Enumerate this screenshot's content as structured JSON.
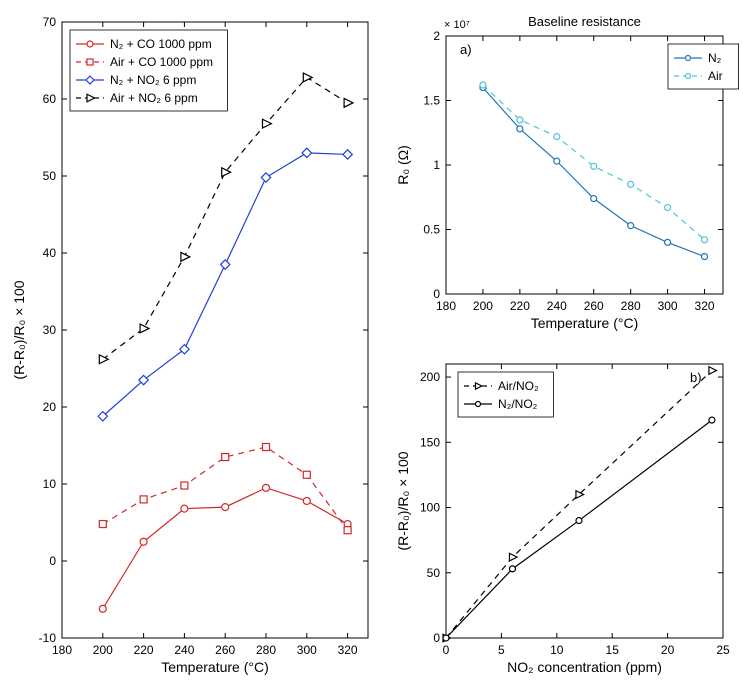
{
  "global": {
    "background_color": "#ffffff",
    "grid_color": "#e6e6e6",
    "axis_color": "#000000",
    "tick_font_size": 12,
    "label_font_size": 14,
    "legend_font_size": 12,
    "title_font_size": 13,
    "font_family": "Arial, Helvetica, sans-serif"
  },
  "left_chart": {
    "type": "line+marker",
    "xlabel": "Temperature (°C)",
    "ylabel": "(R-R₀)/R₀ × 100",
    "xlim": [
      180,
      330
    ],
    "ylim": [
      -10,
      70
    ],
    "xticks": [
      180,
      200,
      220,
      240,
      260,
      280,
      300,
      320
    ],
    "yticks": [
      -10,
      0,
      10,
      20,
      30,
      40,
      50,
      60,
      70
    ],
    "grid": false,
    "x_values": [
      200,
      220,
      240,
      260,
      280,
      300,
      320
    ],
    "series": [
      {
        "label": "N₂ + CO 1000 ppm",
        "color": "#d62728",
        "marker": "circle",
        "linestyle": "solid",
        "y": [
          -6.2,
          2.5,
          6.8,
          7.0,
          9.5,
          7.8,
          4.8
        ]
      },
      {
        "label": "Air + CO 1000 ppm",
        "color": "#d62728",
        "marker": "square",
        "linestyle": "dashed",
        "y": [
          4.8,
          8.0,
          9.8,
          13.5,
          14.8,
          11.2,
          4.0
        ]
      },
      {
        "label": "N₂ + NO₂ 6 ppm",
        "color": "#1f3fd6",
        "marker": "diamond",
        "linestyle": "solid",
        "y": [
          18.8,
          23.5,
          27.5,
          38.5,
          49.8,
          53.0,
          52.8
        ]
      },
      {
        "label": "Air + NO₂ 6 ppm",
        "color": "#000000",
        "marker": "triangle-right",
        "linestyle": "dashed",
        "y": [
          26.2,
          30.2,
          39.5,
          50.5,
          56.8,
          62.8,
          59.5
        ]
      }
    ],
    "legend_position": "upper-left-inside",
    "line_width": 1.2,
    "marker_size": 7
  },
  "right_top_chart": {
    "type": "line+marker",
    "title": "Baseline resistance",
    "panel_label": "a)",
    "xlabel": "Temperature (°C)",
    "ylabel": "R₀ (Ω)",
    "y_exponent_label": "× 10⁷",
    "xlim": [
      180,
      330
    ],
    "ylim": [
      0,
      2
    ],
    "xticks": [
      180,
      200,
      220,
      240,
      260,
      280,
      300,
      320
    ],
    "yticks": [
      0,
      0.5,
      1,
      1.5,
      2
    ],
    "grid": false,
    "x_values": [
      200,
      220,
      240,
      260,
      280,
      300,
      320
    ],
    "series": [
      {
        "label": "N₂",
        "color": "#1f77b4",
        "marker": "circle",
        "linestyle": "solid",
        "y": [
          1.6,
          1.28,
          1.03,
          0.74,
          0.53,
          0.4,
          0.29
        ]
      },
      {
        "label": "Air",
        "color": "#4fc3d9",
        "marker": "circle",
        "linestyle": "dashed",
        "y": [
          1.62,
          1.35,
          1.22,
          0.99,
          0.85,
          0.67,
          0.42
        ]
      }
    ],
    "legend_position": "upper-right-inside",
    "line_width": 1.2,
    "marker_size": 6
  },
  "right_bottom_chart": {
    "type": "line+marker",
    "panel_label": "b)",
    "xlabel": "NO₂ concentration (ppm)",
    "ylabel": "(R-R₀)/R₀ × 100",
    "xlim": [
      0,
      25
    ],
    "ylim": [
      0,
      210
    ],
    "xticks": [
      0,
      5,
      10,
      15,
      20,
      25
    ],
    "yticks": [
      0,
      50,
      100,
      150,
      200
    ],
    "grid": false,
    "x_values": [
      0,
      6,
      12,
      24
    ],
    "series": [
      {
        "label": "Air/NO₂",
        "color": "#000000",
        "marker": "triangle-right",
        "linestyle": "dashed",
        "y": [
          0,
          62,
          110,
          205
        ]
      },
      {
        "label": "N₂/NO₂",
        "color": "#000000",
        "marker": "circle",
        "linestyle": "solid",
        "y": [
          0,
          53,
          90,
          167
        ]
      }
    ],
    "legend_position": "upper-left-inside",
    "line_width": 1.2,
    "marker_size": 6
  }
}
